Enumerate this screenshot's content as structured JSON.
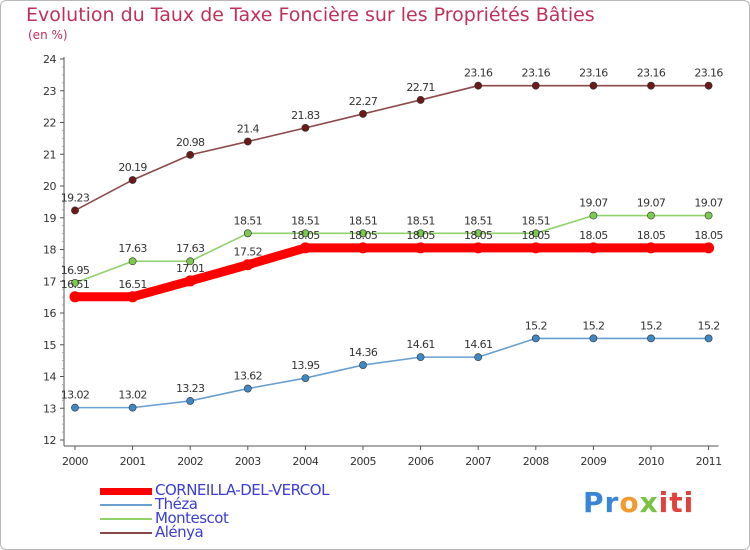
{
  "chart_data": {
    "type": "line",
    "title": "Evolution du Taux de Taxe Foncière sur les Propriétés Bâties",
    "ylabel": "(en %)",
    "xlabel": "",
    "ylim": [
      12,
      24
    ],
    "yticks": [
      12,
      13,
      14,
      15,
      16,
      17,
      18,
      19,
      20,
      21,
      22,
      23,
      24
    ],
    "categories": [
      "2000",
      "2001",
      "2002",
      "2003",
      "2004",
      "2005",
      "2006",
      "2007",
      "2008",
      "2009",
      "2010",
      "2011"
    ],
    "series": [
      {
        "name": "CORNEILLA-DEL-VERCOL",
        "color": "#ff0000",
        "marker": "#ff0000",
        "values": [
          16.51,
          16.51,
          17.01,
          17.52,
          18.05,
          18.05,
          18.05,
          18.05,
          18.05,
          18.05,
          18.05,
          18.05
        ]
      },
      {
        "name": "Théza",
        "color": "#6a9fcf",
        "marker": "#3f88c5",
        "values": [
          13.02,
          13.02,
          13.23,
          13.62,
          13.95,
          14.36,
          14.61,
          14.61,
          15.2,
          15.2,
          15.2,
          15.2
        ]
      },
      {
        "name": "Montescot",
        "color": "#8fd16a",
        "marker": "#7cc94f",
        "values": [
          16.95,
          17.63,
          17.63,
          18.51,
          18.51,
          18.51,
          18.51,
          18.51,
          18.51,
          19.07,
          19.07,
          19.07
        ]
      },
      {
        "name": "Alénya",
        "color": "#8b4a4a",
        "marker": "#6b1a1a",
        "values": [
          19.23,
          20.19,
          20.98,
          21.4,
          21.83,
          22.27,
          22.71,
          23.16,
          23.16,
          23.16,
          23.16,
          23.16
        ]
      }
    ],
    "legend_position": "bottom-left",
    "grid": false
  },
  "logo": {
    "parts": [
      "Pr",
      "o",
      "x",
      "iti"
    ]
  },
  "legend_labels": [
    "CORNEILLA-DEL-VERCOL",
    "Théza",
    "Montescot",
    "Alénya"
  ]
}
